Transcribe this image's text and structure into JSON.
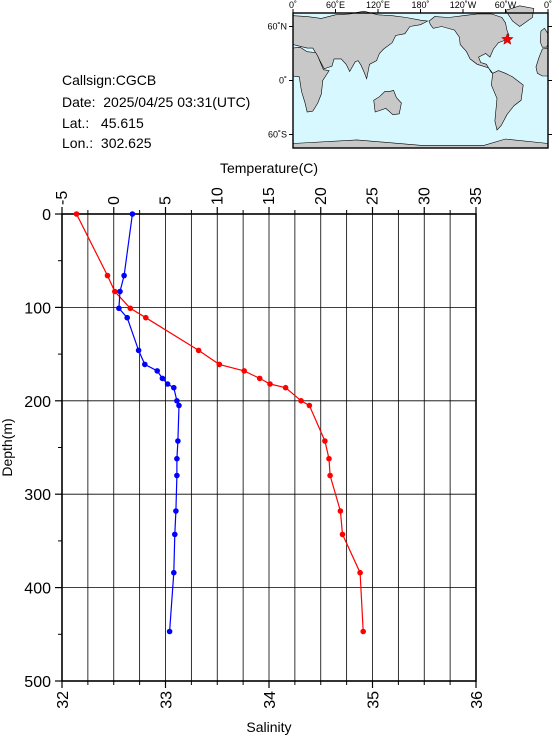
{
  "station": {
    "callsign_label": "Callsign:",
    "callsign": "CGCB",
    "date_label": "Date:",
    "date": "2025/04/25 03:31(UTC)",
    "lat_label": "Lat.:",
    "lat": "45.615",
    "lon_label": "Lon.:",
    "lon": "302.625"
  },
  "map": {
    "top_labels": [
      "0˚",
      "60˚E",
      "120˚E",
      "180˚",
      "120˚W",
      "60˚W",
      "0˚"
    ],
    "lon_ticks": [
      0,
      60,
      120,
      180,
      240,
      300,
      360
    ],
    "lat_labels": [
      "60˚N",
      "0˚",
      "60˚S"
    ],
    "lat_ticks": [
      60,
      0,
      -60
    ],
    "marker_icon": "red-star-icon",
    "marker_lon": 302.625,
    "marker_lat": 45.615,
    "ocean_color": "#d8f8ff",
    "land_color": "#c8c8c8"
  },
  "chart_data": {
    "type": "line",
    "top_axis_label": "Temperature(C)",
    "bottom_axis_label": "Salinity",
    "ylabel": "Depth(m)",
    "temperature_lim": [
      -5,
      35
    ],
    "temperature_ticks": [
      -5,
      0,
      5,
      10,
      15,
      20,
      25,
      30,
      35
    ],
    "salinity_lim": [
      32,
      36
    ],
    "salinity_ticks": [
      32,
      33,
      34,
      35,
      36
    ],
    "depth_lim": [
      0,
      500
    ],
    "depth_ticks": [
      0,
      100,
      200,
      300,
      400,
      500
    ],
    "grid": true,
    "series": [
      {
        "quantity": "temperature",
        "color": "#ff0000",
        "depth": [
          0,
          66,
          83,
          101,
          111,
          146,
          161,
          168,
          176,
          182,
          186,
          200,
          205,
          243,
          262,
          280,
          318,
          343,
          384,
          447
        ],
        "values": [
          -3.6,
          -0.6,
          0.1,
          1.6,
          3.1,
          8.2,
          10.2,
          12.6,
          14.1,
          15.1,
          16.6,
          18.1,
          18.9,
          20.4,
          20.8,
          20.9,
          21.9,
          22.1,
          23.8,
          24.1
        ]
      },
      {
        "quantity": "salinity",
        "color": "#0000ff",
        "depth": [
          0,
          66,
          83,
          101,
          111,
          146,
          161,
          168,
          176,
          182,
          186,
          200,
          205,
          243,
          262,
          280,
          318,
          343,
          384,
          447
        ],
        "values": [
          32.68,
          32.6,
          32.56,
          32.55,
          32.63,
          32.74,
          32.8,
          32.92,
          32.97,
          33.02,
          33.08,
          33.11,
          33.13,
          33.12,
          33.11,
          33.11,
          33.1,
          33.09,
          33.08,
          33.04
        ]
      }
    ]
  }
}
